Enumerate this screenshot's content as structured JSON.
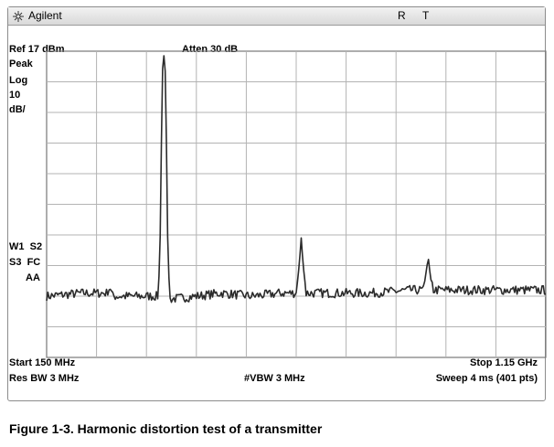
{
  "window": {
    "brand": "Agilent",
    "status_indicators": [
      "R",
      "T"
    ]
  },
  "annotations": {
    "ref_level": "Ref 17 dBm",
    "attenuation": "Atten 30 dB",
    "detector": "Peak",
    "scale_type": "Log",
    "scale_value": "10",
    "scale_unit": "dB/",
    "trigger_line1": "W1  S2",
    "trigger_line2": "S3  FC",
    "trigger_line3": "AA",
    "start_freq": "Start 150 MHz",
    "stop_freq": "Stop 1.15 GHz",
    "res_bw": "Res BW 3 MHz",
    "vbw": "#VBW 3 MHz",
    "sweep": "Sweep 4 ms (401 pts)"
  },
  "caption": "Figure 1-3. Harmonic distortion test of a transmitter",
  "chart_data": {
    "type": "line",
    "title": "",
    "xlabel": "",
    "ylabel": "",
    "x_unit": "MHz",
    "y_unit": "dBm",
    "xlim": [
      150,
      1150
    ],
    "ylim": [
      -83,
      17
    ],
    "grid": true,
    "noise_floor_dbm": -63,
    "series": [
      {
        "values": [
          {
            "x": 150,
            "y": -63
          },
          {
            "x": 220,
            "y": -62
          },
          {
            "x": 270,
            "y": -62
          },
          {
            "x": 277,
            "y": -60
          },
          {
            "x": 282,
            "y": -63
          },
          {
            "x": 320,
            "y": -63
          },
          {
            "x": 373,
            "y": -63
          },
          {
            "x": 377,
            "y": -50
          },
          {
            "x": 380,
            "y": -12
          },
          {
            "x": 383,
            "y": 16
          },
          {
            "x": 387,
            "y": 15
          },
          {
            "x": 390,
            "y": -12
          },
          {
            "x": 393,
            "y": -50
          },
          {
            "x": 397,
            "y": -64
          },
          {
            "x": 450,
            "y": -63
          },
          {
            "x": 500,
            "y": -62
          },
          {
            "x": 560,
            "y": -63
          },
          {
            "x": 620,
            "y": -62
          },
          {
            "x": 650,
            "y": -62
          },
          {
            "x": 656,
            "y": -53
          },
          {
            "x": 660,
            "y": -44
          },
          {
            "x": 664,
            "y": -53
          },
          {
            "x": 670,
            "y": -62
          },
          {
            "x": 720,
            "y": -62
          },
          {
            "x": 800,
            "y": -62
          },
          {
            "x": 880,
            "y": -61
          },
          {
            "x": 905,
            "y": -61
          },
          {
            "x": 912,
            "y": -53
          },
          {
            "x": 915,
            "y": -51
          },
          {
            "x": 919,
            "y": -57
          },
          {
            "x": 925,
            "y": -61
          },
          {
            "x": 1000,
            "y": -61
          },
          {
            "x": 1080,
            "y": -61
          },
          {
            "x": 1150,
            "y": -61
          }
        ]
      }
    ]
  }
}
